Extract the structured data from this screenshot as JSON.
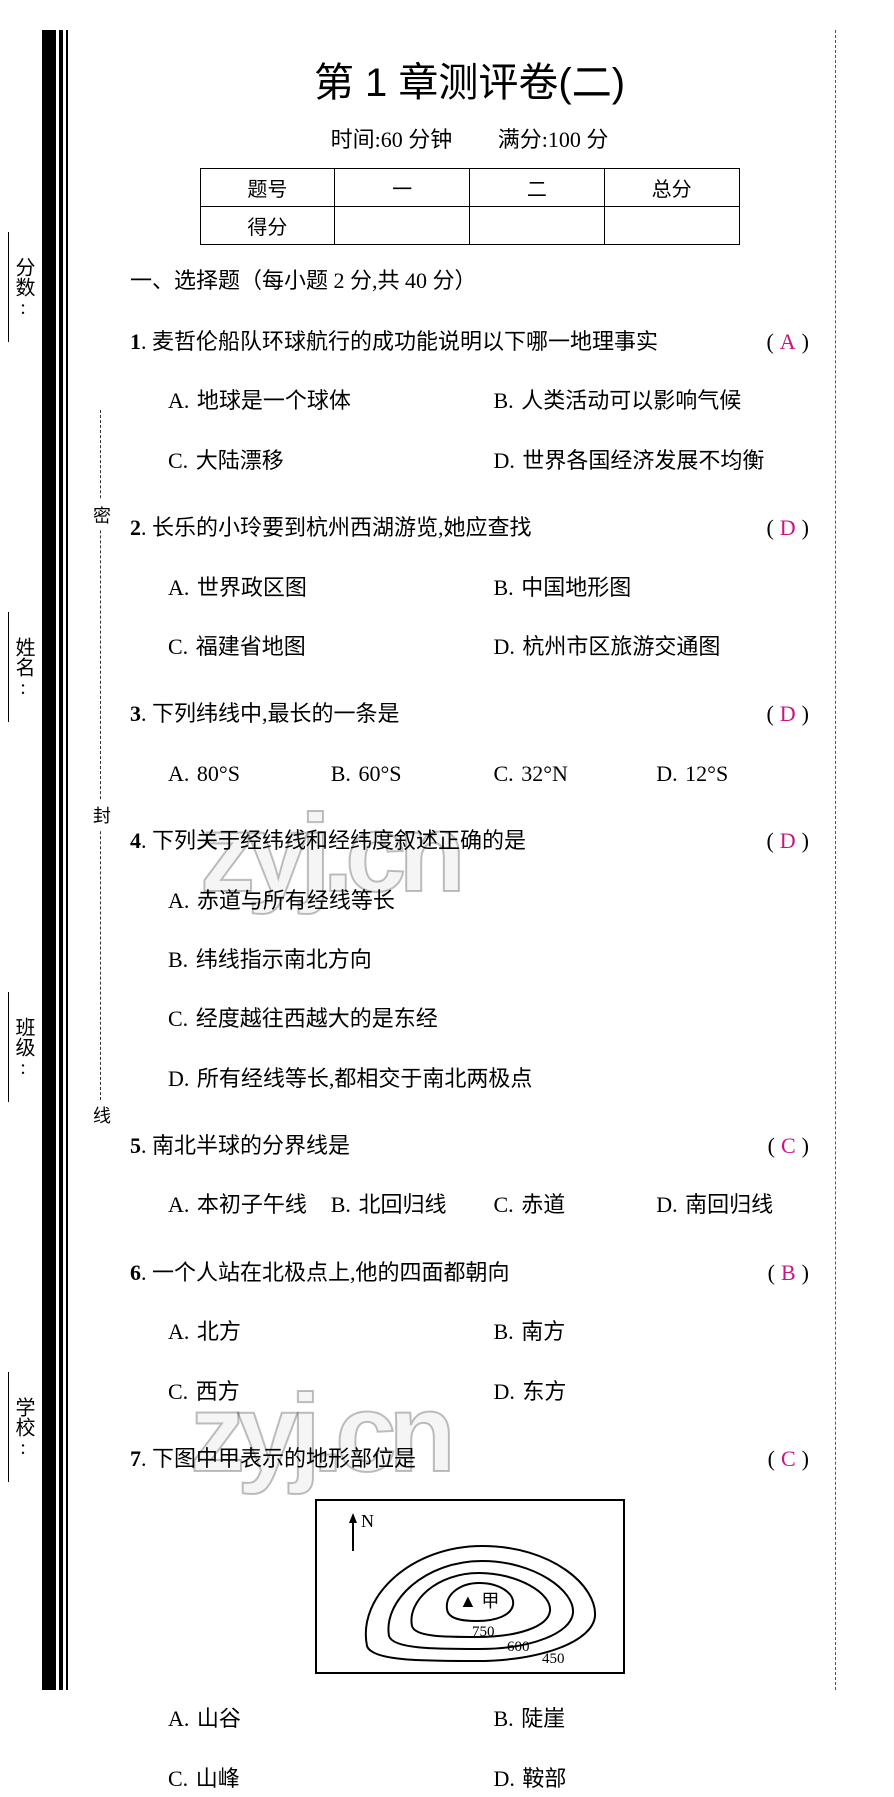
{
  "title": "第 1 章测评卷(二)",
  "subtitle": {
    "time": "时间:60 分钟",
    "full": "满分:100 分"
  },
  "score_table": {
    "headers": [
      "题号",
      "一",
      "二",
      "总分"
    ],
    "row_label": "得分"
  },
  "section1": "一、选择题（每小题 2 分,共 40 分）",
  "questions": [
    {
      "num": "1",
      "text": "麦哲伦船队环球航行的成功能说明以下哪一地理事实",
      "answer": "A",
      "layout": "cols-2",
      "opts": [
        {
          "k": "A.",
          "v": "地球是一个球体"
        },
        {
          "k": "B.",
          "v": "人类活动可以影响气候"
        },
        {
          "k": "C.",
          "v": "大陆漂移"
        },
        {
          "k": "D.",
          "v": "世界各国经济发展不均衡"
        }
      ]
    },
    {
      "num": "2",
      "text": "长乐的小玲要到杭州西湖游览,她应查找",
      "answer": "D",
      "layout": "cols-2",
      "opts": [
        {
          "k": "A.",
          "v": "世界政区图"
        },
        {
          "k": "B.",
          "v": "中国地形图"
        },
        {
          "k": "C.",
          "v": "福建省地图"
        },
        {
          "k": "D.",
          "v": "杭州市区旅游交通图"
        }
      ]
    },
    {
      "num": "3",
      "text": "下列纬线中,最长的一条是",
      "answer": "D",
      "layout": "cols-4",
      "opts": [
        {
          "k": "A.",
          "v": "80°S"
        },
        {
          "k": "B.",
          "v": "60°S"
        },
        {
          "k": "C.",
          "v": "32°N"
        },
        {
          "k": "D.",
          "v": "12°S"
        }
      ]
    },
    {
      "num": "4",
      "text": "下列关于经纬线和经纬度叙述正确的是",
      "answer": "D",
      "layout": "cols-1",
      "opts": [
        {
          "k": "A.",
          "v": "赤道与所有经线等长"
        },
        {
          "k": "B.",
          "v": "纬线指示南北方向"
        },
        {
          "k": "C.",
          "v": "经度越往西越大的是东经"
        },
        {
          "k": "D.",
          "v": "所有经线等长,都相交于南北两极点"
        }
      ]
    },
    {
      "num": "5",
      "text": "南北半球的分界线是",
      "answer": "C",
      "layout": "cols-4",
      "opts": [
        {
          "k": "A.",
          "v": "本初子午线"
        },
        {
          "k": "B.",
          "v": "北回归线"
        },
        {
          "k": "C.",
          "v": "赤道"
        },
        {
          "k": "D.",
          "v": "南回归线"
        }
      ]
    },
    {
      "num": "6",
      "text": "一个人站在北极点上,他的四面都朝向",
      "answer": "B",
      "layout": "cols-2",
      "opts": [
        {
          "k": "A.",
          "v": "北方"
        },
        {
          "k": "B.",
          "v": "南方"
        },
        {
          "k": "C.",
          "v": "西方"
        },
        {
          "k": "D.",
          "v": "东方"
        }
      ]
    },
    {
      "num": "7",
      "text": "下图中甲表示的地形部位是",
      "answer": "C",
      "layout": "cols-2",
      "has_figure": true,
      "opts": [
        {
          "k": "A.",
          "v": "山谷"
        },
        {
          "k": "B.",
          "v": "陡崖"
        },
        {
          "k": "C.",
          "v": "山峰"
        },
        {
          "k": "D.",
          "v": "鞍部"
        }
      ]
    }
  ],
  "figure": {
    "north": "N",
    "peak_label": "▲ 甲",
    "contours": [
      "750",
      "600",
      "450"
    ],
    "contour_paths": [
      "M 50 145 C 40 95, 95 45, 165 45 C 235 45, 280 85, 278 115 C 276 140, 225 160, 160 160 C 105 160, 55 160, 50 145 Z",
      "M 72 135 C 66 100, 108 60, 165 60 C 218 60, 258 90, 256 112 C 254 132, 215 148, 162 148 C 118 148, 76 148, 72 135 Z",
      "M 95 125 C 90 100, 120 72, 162 72 C 200 72, 235 92, 233 110 C 231 126, 200 136, 160 136 C 128 136, 98 136, 95 125 Z",
      "M 130 108 C 128 92, 145 82, 162 82 C 182 82, 198 92, 196 104 C 194 114, 180 120, 160 120 C 145 120, 131 118, 130 108 Z"
    ]
  },
  "side_fields": [
    "学校:",
    "班级:",
    "姓名:",
    "分数:"
  ],
  "seal_chars": [
    "密",
    "封",
    "线"
  ],
  "watermark": "zyj.cn",
  "answer_color": "#c71585"
}
